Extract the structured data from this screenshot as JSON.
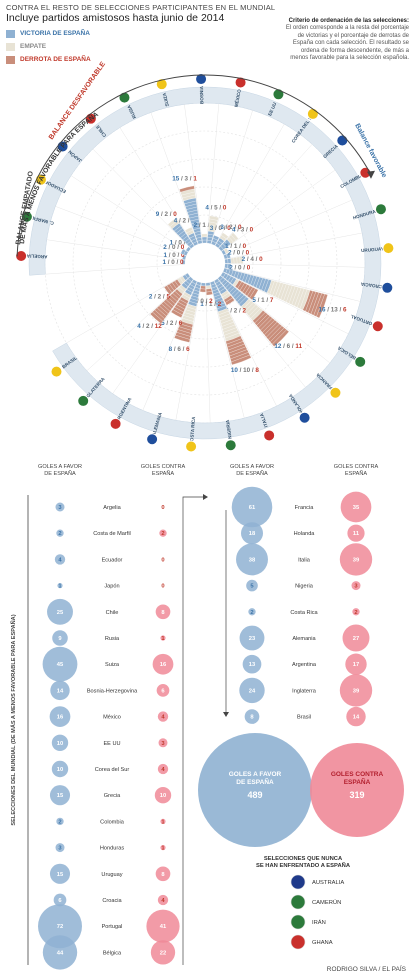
{
  "header": {
    "kicker": "CONTRA EL RESTO DE SELECCIONES PARTICIPANTES EN EL MUNDIAL",
    "title": "Incluye partidos amistosos hasta junio de 2014"
  },
  "legend": [
    {
      "label": "VICTORIA DE ESPAÑA",
      "color": "#8fb1d2",
      "text_color": "#3b73a8"
    },
    {
      "label": "EMPATE",
      "color": "#e8e3d5",
      "text_color": "#8a8a8a"
    },
    {
      "label": "DERROTA DE ESPAÑA",
      "color": "#c98e7b",
      "text_color": "#c0392b"
    }
  ],
  "note": {
    "title": "Criterio de ordenación de las selecciones:",
    "body": "El orden corresponde a la resta del porcentaje de victorias y el porcentaje de derrotas de España con cada selección. El resultado se ordena de forma descendente, de más a menos favorable para la selección española."
  },
  "radial_labels": {
    "arc_main": "DE MÁS A MENOS FAVORABLE PARA ESPAÑA",
    "fav": "Balance favorable",
    "desfav": "BALANCE DESFAVORABLE",
    "emp": "BALANCE EMPATADO"
  },
  "bubble_headers": {
    "favor": "GOLES A FAVOR DE ESPAÑA",
    "contra": "GOLES CONTRA ESPAÑA",
    "side_axis": "SELECCIONES DEL MUNDIAL (DE MÁS A MENOS FAVORABLE PARA ESPAÑA)"
  },
  "totals": {
    "favor_label": "GOLES A FAVOR DE ESPAÑA",
    "favor": 489,
    "contra_label": "GOLES CONTRA ESPAÑA",
    "contra": 319
  },
  "never_played": {
    "title": "SELECCIONES QUE NUNCA SE HAN ENFRENTADO A ESPAÑA",
    "teams": [
      "AUSTRALIA",
      "CAMERÚN",
      "IRÁN",
      "GHANA"
    ]
  },
  "credit": "RODRIGO SILVA / EL PAÍS",
  "colors": {
    "win": "#8fb1d2",
    "draw": "#e8e3d5",
    "loss": "#c98e7b",
    "win_text": "#3b73a8",
    "loss_text": "#c0392b",
    "favor_bubble": "#8fb1d2",
    "contra_bubble": "#f08a98"
  },
  "chart_data": [
    {
      "type": "bar",
      "subtype": "radial-stacked",
      "categories": [
        "Argelia",
        "Costa de Marfil",
        "Ecuador",
        "Japón",
        "Chile",
        "Rusia",
        "Suiza",
        "Bosnia-Herzegovina",
        "México",
        "EE UU",
        "Corea del Sur",
        "Grecia",
        "Colombia",
        "Honduras",
        "Uruguay",
        "Croacia",
        "Portugal",
        "Bélgica",
        "Francia",
        "Holanda",
        "Italia",
        "Nigeria",
        "Costa Rica",
        "Alemania",
        "Argentina",
        "Inglaterra",
        "Brasil"
      ],
      "ring_labels": [
        "ARGELIA",
        "C. MARFIL",
        "ECUADOR",
        "JAPÓN",
        "CHILE",
        "RUSIA",
        "SUIZA",
        "BOSNIA",
        "MÉXICO",
        "EE UU",
        "COREA DEL SUR",
        "GRECIA",
        "COLOMBIA",
        "HONDURAS",
        "URUGUAY",
        "CROACIA",
        "PORTUGAL",
        "BÉLGICA",
        "FRANCIA",
        "HOLANDA",
        "ITALIA",
        "NIGERIA",
        "COSTA RICA",
        "ALEMANIA",
        "ARGENTINA",
        "INGLATERRA",
        "BRASIL"
      ],
      "series": [
        {
          "name": "VICTORIA DE ESPAÑA",
          "values": [
            1,
            1,
            2,
            1,
            9,
            4,
            15,
            2,
            4,
            3,
            3,
            4,
            1,
            2,
            2,
            2,
            16,
            5,
            12,
            5,
            10,
            1,
            1,
            8,
            5,
            4,
            2
          ]
        },
        {
          "name": "EMPATE",
          "values": [
            0,
            0,
            0,
            0,
            2,
            2,
            3,
            1,
            5,
            0,
            2,
            3,
            1,
            0,
            4,
            0,
            13,
            1,
            6,
            2,
            10,
            1,
            0,
            6,
            2,
            2,
            2
          ]
        },
        {
          "name": "DERROTA DE ESPAÑA",
          "values": [
            0,
            0,
            0,
            0,
            0,
            0,
            1,
            0,
            0,
            0,
            0,
            0,
            0,
            0,
            0,
            0,
            6,
            7,
            11,
            2,
            8,
            2,
            2,
            6,
            6,
            12,
            5
          ]
        }
      ],
      "balance_groups": {
        "favorable": "Argelia–Croacia, Portugal",
        "empatado": "Italia, Nigeria",
        "desfavorable": "Costa Rica–Brasil"
      }
    },
    {
      "type": "bubble",
      "categories": [
        "Argelia",
        "Costa de Marfil",
        "Ecuador",
        "Japón",
        "Chile",
        "Rusia",
        "Suiza",
        "Bosnia-Herzegovina",
        "México",
        "EE UU",
        "Corea del Sur",
        "Grecia",
        "Colombia",
        "Honduras",
        "Uruguay",
        "Croacia",
        "Portugal",
        "Bélgica",
        "Francia",
        "Holanda",
        "Italia",
        "Nigeria",
        "Costa Rica",
        "Alemania",
        "Argentina",
        "Inglaterra",
        "Brasil"
      ],
      "series": [
        {
          "name": "GOLES A FAVOR DE ESPAÑA",
          "values": [
            3,
            2,
            4,
            1,
            25,
            9,
            45,
            14,
            16,
            10,
            10,
            15,
            2,
            3,
            15,
            6,
            72,
            44,
            61,
            18,
            38,
            5,
            2,
            23,
            13,
            24,
            8
          ]
        },
        {
          "name": "GOLES CONTRA ESPAÑA",
          "values": [
            0,
            2,
            0,
            0,
            8,
            1,
            16,
            6,
            4,
            3,
            4,
            10,
            1,
            1,
            8,
            4,
            41,
            22,
            35,
            11,
            39,
            3,
            2,
            27,
            17,
            39,
            14
          ]
        }
      ]
    }
  ]
}
